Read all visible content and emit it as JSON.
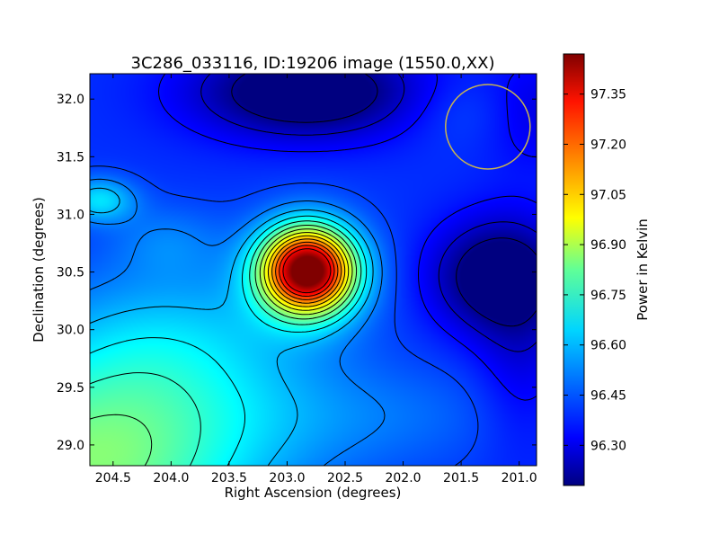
{
  "chart_data": {
    "type": "heatmap",
    "title": "3C286_033116, ID:19206 image (1550.0,XX)",
    "xlabel": "Right Ascension (degrees)",
    "ylabel": "Declination (degrees)",
    "xlim": [
      204.7,
      200.85
    ],
    "ylim": [
      28.82,
      32.22
    ],
    "x_ticks": [
      204.5,
      204.0,
      203.5,
      203.0,
      202.5,
      202.0,
      201.5,
      201.0
    ],
    "x_tick_labels": [
      "204.5",
      "204.0",
      "203.5",
      "203.0",
      "202.5",
      "202.0",
      "201.5",
      "201.0"
    ],
    "y_ticks": [
      29.0,
      29.5,
      30.0,
      30.5,
      31.0,
      31.5,
      32.0
    ],
    "y_tick_labels": [
      "29.0",
      "29.5",
      "30.0",
      "30.5",
      "31.0",
      "31.5",
      "32.0"
    ],
    "colorbar": {
      "label": "Power in Kelvin",
      "range": [
        96.18,
        97.47
      ],
      "ticks": [
        96.3,
        96.45,
        96.6,
        96.75,
        96.9,
        97.05,
        97.2,
        97.35
      ],
      "tick_labels": [
        "96.30",
        "96.45",
        "96.60",
        "96.75",
        "96.90",
        "97.05",
        "97.20",
        "97.35"
      ],
      "colormap": "jet"
    },
    "peak": {
      "ra": 202.83,
      "dec": 30.53,
      "value": 97.45
    },
    "beam_circle": {
      "ra": 201.27,
      "dec": 31.76,
      "color": "#c8b450"
    },
    "contour_color": "#000000"
  }
}
